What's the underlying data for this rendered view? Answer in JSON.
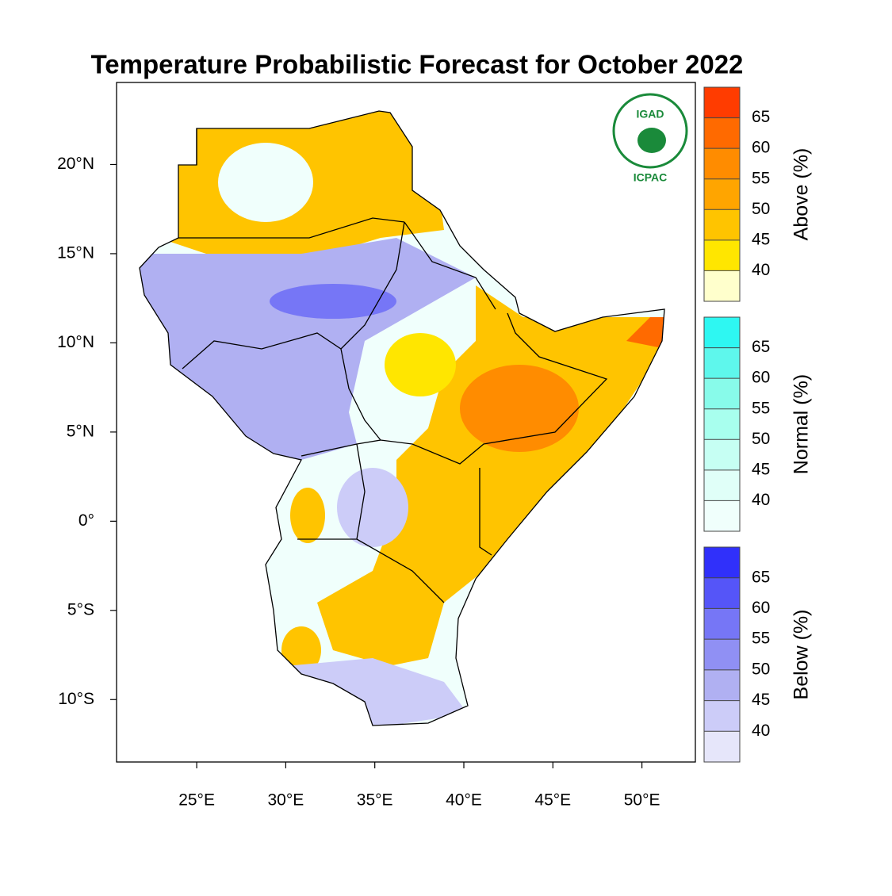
{
  "chart_data": {
    "type": "map",
    "title": "Temperature Probabilistic Forecast for October 2022",
    "xlim": [
      20.5,
      53
    ],
    "ylim": [
      -13.5,
      24.6
    ],
    "xticks": [
      {
        "value": 25,
        "label": "25°E"
      },
      {
        "value": 30,
        "label": "30°E"
      },
      {
        "value": 35,
        "label": "35°E"
      },
      {
        "value": 40,
        "label": "40°E"
      },
      {
        "value": 45,
        "label": "45°E"
      },
      {
        "value": 50,
        "label": "50°E"
      }
    ],
    "yticks": [
      {
        "value": 20,
        "label": "20°N"
      },
      {
        "value": 15,
        "label": "15°N"
      },
      {
        "value": 10,
        "label": "10°N"
      },
      {
        "value": 5,
        "label": "5°N"
      },
      {
        "value": 0,
        "label": "0°"
      },
      {
        "value": -5,
        "label": "5°S"
      },
      {
        "value": -10,
        "label": "10°S"
      }
    ],
    "logo": {
      "top": "IGAD",
      "bottom": "ICPAC"
    },
    "colorbars": [
      {
        "title": "Above (%)",
        "clim": [
          35,
          70
        ],
        "ticks": [
          40,
          45,
          50,
          55,
          60,
          65
        ],
        "colors": [
          "#ffffcc",
          "#ffe600",
          "#ffc400",
          "#ffa500",
          "#ff8c00",
          "#ff6a00",
          "#ff3c00"
        ]
      },
      {
        "title": "Normal (%)",
        "clim": [
          35,
          70
        ],
        "ticks": [
          40,
          45,
          50,
          55,
          60,
          65
        ],
        "colors": [
          "#f0fffc",
          "#e0fff8",
          "#c6fff3",
          "#a8ffee",
          "#88fbea",
          "#5ef7ec",
          "#2ef7f2"
        ]
      },
      {
        "title": "Below (%)",
        "clim": [
          35,
          70
        ],
        "ticks": [
          40,
          45,
          50,
          55,
          60,
          65
        ],
        "colors": [
          "#e6e6fa",
          "#ccccf8",
          "#b0b0f2",
          "#9090f4",
          "#7676f6",
          "#5555f8",
          "#3030fa"
        ]
      }
    ]
  }
}
